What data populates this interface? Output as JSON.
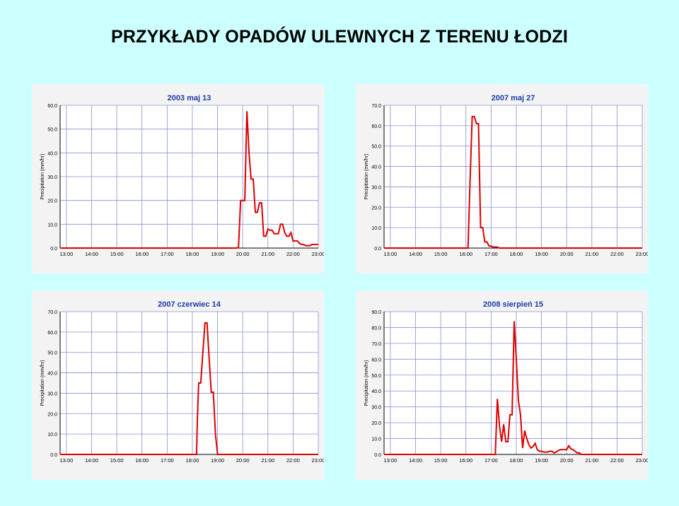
{
  "page": {
    "title": "PRZYKŁADY OPADÓW ULEWNYCH Z TERENU ŁODZI"
  },
  "colors": {
    "background": "#ccffff",
    "panel": "#f3f3f3",
    "series": "#dd0000",
    "title": "#1a3ca8",
    "grid": "#8a8fd0"
  },
  "chart_data": [
    {
      "type": "line",
      "title": "2003 maj 13",
      "ylabel": "Precipitation (mm/hr)",
      "xlabel": "",
      "ylim": [
        0,
        60
      ],
      "yticks": [
        "0.0",
        "10.0",
        "20.0",
        "30.0",
        "40.0",
        "50.0",
        "60.0"
      ],
      "xlim": [
        "12:45",
        "23:00"
      ],
      "xticks": [
        "13:00",
        "14:00",
        "15:00",
        "16:00",
        "17:00",
        "18:00",
        "19:00",
        "20:00",
        "21:00",
        "22:00",
        "23:00"
      ],
      "grid": true,
      "series": [
        {
          "x": [
            "12:45",
            "19:45",
            "19:50",
            "19:55",
            "20:00",
            "20:05",
            "20:10",
            "20:15",
            "20:20",
            "20:25",
            "20:30",
            "20:35",
            "20:40",
            "20:45",
            "20:50",
            "20:55",
            "21:00",
            "21:05",
            "21:10",
            "21:15",
            "21:20",
            "21:25",
            "21:30",
            "21:35",
            "21:40",
            "21:45",
            "21:50",
            "21:55",
            "22:00",
            "22:05",
            "22:10",
            "22:15",
            "22:20",
            "22:25",
            "22:30",
            "22:35",
            "22:40",
            "22:45",
            "22:50",
            "22:55",
            "23:00"
          ],
          "y": [
            0,
            0,
            0.3,
            20,
            20,
            20,
            57.5,
            40,
            29,
            29,
            15,
            15,
            19,
            19,
            5,
            5,
            8,
            7.5,
            7.5,
            6,
            6,
            6,
            10,
            10,
            6.5,
            5,
            5,
            6.5,
            3,
            3,
            3,
            2,
            1.5,
            1.5,
            1,
            1,
            1,
            1.5,
            1.5,
            1.5,
            1.5
          ]
        }
      ]
    },
    {
      "type": "line",
      "title": "2007 maj 27",
      "ylabel": "Precipitation (mm/hr)",
      "xlabel": "",
      "ylim": [
        0,
        70
      ],
      "yticks": [
        "0.0",
        "10.0",
        "20.0",
        "30.0",
        "40.0",
        "50.0",
        "60.0",
        "70.0"
      ],
      "xlim": [
        "12:45",
        "23:00"
      ],
      "xticks": [
        "13:00",
        "14:00",
        "15:00",
        "16:00",
        "17:00",
        "18:00",
        "19:00",
        "20:00",
        "21:00",
        "22:00",
        "23:00"
      ],
      "grid": true,
      "series": [
        {
          "x": [
            "12:45",
            "16:05",
            "16:10",
            "16:15",
            "16:20",
            "16:25",
            "16:30",
            "16:35",
            "16:40",
            "16:45",
            "16:50",
            "16:55",
            "17:00",
            "17:05",
            "17:10",
            "17:15",
            "17:20",
            "17:25",
            "23:00"
          ],
          "y": [
            0,
            0,
            34,
            64.5,
            64.5,
            61,
            61,
            10,
            10,
            3,
            3,
            1,
            1,
            0.5,
            0.5,
            0.5,
            0,
            0,
            0
          ]
        }
      ]
    },
    {
      "type": "line",
      "title": "2007 czerwiec 14",
      "ylabel": "Precipitation (mm/hr)",
      "xlabel": "",
      "ylim": [
        0,
        70
      ],
      "yticks": [
        "0.0",
        "10.0",
        "20.0",
        "30.0",
        "40.0",
        "50.0",
        "60.0",
        "70.0"
      ],
      "xlim": [
        "12:45",
        "23:00"
      ],
      "xticks": [
        "13:00",
        "14:00",
        "15:00",
        "16:00",
        "17:00",
        "18:00",
        "19:00",
        "20:00",
        "21:00",
        "22:00",
        "23:00"
      ],
      "grid": true,
      "series": [
        {
          "x": [
            "12:45",
            "18:10",
            "18:12",
            "18:15",
            "18:20",
            "18:25",
            "18:30",
            "18:35",
            "18:40",
            "18:45",
            "18:50",
            "18:55",
            "19:00",
            "23:00"
          ],
          "y": [
            0,
            0,
            18,
            35,
            35,
            50,
            64.5,
            64.5,
            47,
            30.5,
            30.5,
            10,
            0,
            0
          ]
        }
      ]
    },
    {
      "type": "line",
      "title": "2008 sierpień 15",
      "ylabel": "Precipitation (mm/hr)",
      "xlabel": "",
      "ylim": [
        0,
        90
      ],
      "yticks": [
        "0.0",
        "10.0",
        "20.0",
        "30.0",
        "40.0",
        "50.0",
        "60.0",
        "70.0",
        "80.0",
        "90.0"
      ],
      "xlim": [
        "12:45",
        "23:00"
      ],
      "xticks": [
        "13:00",
        "14:00",
        "15:00",
        "16:00",
        "17:00",
        "18:00",
        "19:00",
        "20:00",
        "21:00",
        "22:00",
        "23:00"
      ],
      "grid": true,
      "series": [
        {
          "x": [
            "12:45",
            "17:10",
            "17:15",
            "17:20",
            "17:25",
            "17:30",
            "17:35",
            "17:40",
            "17:45",
            "17:50",
            "17:55",
            "18:00",
            "18:05",
            "18:10",
            "18:15",
            "18:20",
            "18:25",
            "18:30",
            "18:35",
            "18:40",
            "18:45",
            "18:50",
            "18:55",
            "19:00",
            "19:05",
            "19:10",
            "19:15",
            "19:20",
            "19:25",
            "19:30",
            "19:35",
            "19:40",
            "19:45",
            "19:50",
            "19:55",
            "20:00",
            "20:05",
            "20:10",
            "20:15",
            "20:20",
            "20:25",
            "20:30",
            "20:35",
            "23:00"
          ],
          "y": [
            0,
            0,
            35,
            18,
            8,
            19,
            8,
            8,
            25,
            25,
            84,
            60,
            34,
            25,
            4,
            15,
            10,
            6,
            4,
            5,
            7,
            3,
            2,
            2,
            1.5,
            1.5,
            1.5,
            2,
            2,
            1,
            1.5,
            2.5,
            3,
            3,
            3,
            3,
            5.5,
            3.5,
            3,
            2,
            1,
            1,
            0,
            0
          ]
        }
      ]
    }
  ]
}
